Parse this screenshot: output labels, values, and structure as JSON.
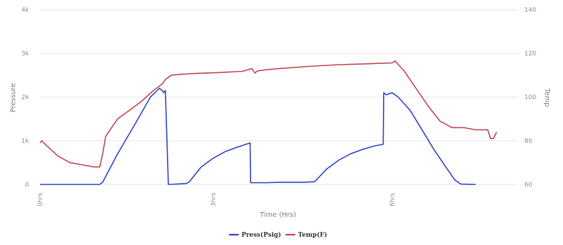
{
  "chart_data": {
    "type": "line",
    "title": "",
    "xlabel": "Time (Hrs)",
    "ylabel_left": "Pressure",
    "ylabel_right": "Temp",
    "x_range": [
      0,
      8
    ],
    "x_ticks": [
      {
        "value": 0,
        "label": "0hrs"
      },
      {
        "value": 2.9,
        "label": "3hrs"
      },
      {
        "value": 5.9,
        "label": "6hrs"
      }
    ],
    "y_left_range": [
      0,
      4000
    ],
    "y_left_ticks": [
      {
        "value": 0,
        "label": "0"
      },
      {
        "value": 1000,
        "label": "1k"
      },
      {
        "value": 2000,
        "label": "2k"
      },
      {
        "value": 3000,
        "label": "3k"
      },
      {
        "value": 4000,
        "label": "4k"
      }
    ],
    "y_right_range": [
      60,
      140
    ],
    "y_right_ticks": [
      {
        "value": 60,
        "label": "60"
      },
      {
        "value": 80,
        "label": "80"
      },
      {
        "value": 100,
        "label": "100"
      },
      {
        "value": 120,
        "label": "120"
      },
      {
        "value": 140,
        "label": "140"
      }
    ],
    "grid": true,
    "legend_position": "bottom",
    "series": [
      {
        "name": "Press(Psig)",
        "axis": "left",
        "color": "#2b3fc4",
        "x": [
          0,
          1.0,
          1.05,
          1.3,
          1.6,
          1.85,
          2.0,
          2.05,
          2.07,
          2.1,
          2.15,
          2.3,
          2.45,
          2.5,
          2.7,
          2.9,
          3.1,
          3.3,
          3.52,
          3.53,
          3.6,
          3.8,
          4.0,
          4.2,
          4.4,
          4.6,
          4.8,
          5.0,
          5.2,
          5.4,
          5.6,
          5.75,
          5.76,
          5.8,
          5.9,
          6.0,
          6.2,
          6.4,
          6.6,
          6.8,
          6.95,
          7.05,
          7.15,
          7.3
        ],
        "values": [
          0,
          0,
          50,
          700,
          1400,
          2000,
          2200,
          2150,
          2100,
          2150,
          0,
          10,
          20,
          60,
          400,
          600,
          750,
          850,
          950,
          40,
          40,
          40,
          50,
          50,
          50,
          60,
          350,
          550,
          700,
          800,
          880,
          920,
          2100,
          2050,
          2100,
          2000,
          1700,
          1250,
          800,
          400,
          100,
          10,
          5,
          0
        ]
      },
      {
        "name": "Temp(F)",
        "axis": "right",
        "color": "#c0414b",
        "x": [
          0,
          0.03,
          0.1,
          0.3,
          0.5,
          0.7,
          0.9,
          1.0,
          1.05,
          1.1,
          1.2,
          1.3,
          1.5,
          1.7,
          1.9,
          2.05,
          2.1,
          2.2,
          2.4,
          2.6,
          2.8,
          3.0,
          3.2,
          3.4,
          3.55,
          3.6,
          3.65,
          3.8,
          4.0,
          4.5,
          5.0,
          5.5,
          5.75,
          5.9,
          5.95,
          6.0,
          6.1,
          6.3,
          6.5,
          6.7,
          6.9,
          7.1,
          7.3,
          7.5,
          7.55,
          7.6,
          7.65
        ],
        "values": [
          79,
          80,
          78,
          73,
          70,
          69,
          68,
          68,
          74,
          82,
          86,
          90,
          94,
          98,
          103,
          106,
          108,
          110,
          110.5,
          110.8,
          111,
          111.2,
          111.5,
          111.8,
          113,
          111,
          112,
          112.5,
          113,
          114,
          114.8,
          115.2,
          115.5,
          115.6,
          116.5,
          115,
          112,
          104,
          96,
          89,
          86,
          86,
          85,
          85,
          81,
          81,
          84
        ]
      }
    ]
  }
}
